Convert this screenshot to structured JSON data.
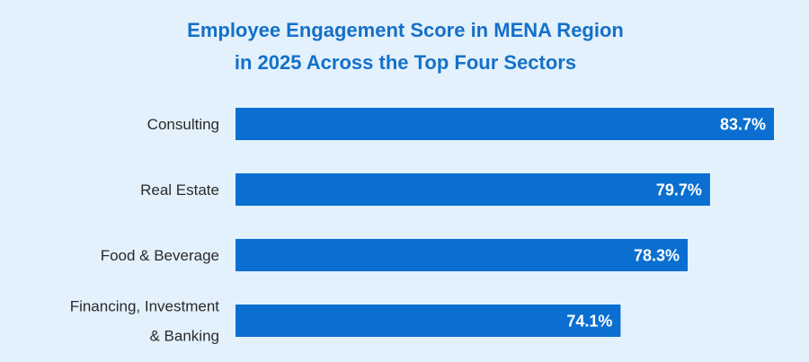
{
  "chart_data": {
    "type": "bar",
    "orientation": "horizontal",
    "title": [
      "Employee Engagement Score in MENA Region",
      "in 2025 Across the Top Four Sectors"
    ],
    "categories": [
      [
        "Consulting"
      ],
      [
        "Real Estate"
      ],
      [
        "Food & Beverage"
      ],
      [
        "Financing, Investment",
        "& Banking"
      ]
    ],
    "values": [
      83.7,
      79.7,
      78.3,
      74.1
    ],
    "value_labels": [
      "83.7%",
      "79.7%",
      "78.3%",
      "74.1%"
    ],
    "xlim": [
      50,
      83.7
    ],
    "grid": false,
    "legend": "none",
    "colors": {
      "bar": "#0a6fd0",
      "title": "#1570c8",
      "background": "#e3f1fd",
      "label": "#2a2a2a",
      "value_label": "#ffffff"
    }
  }
}
